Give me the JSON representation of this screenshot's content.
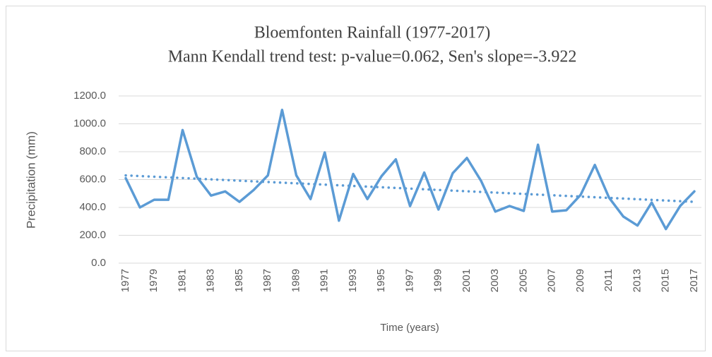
{
  "chart_data": {
    "type": "line",
    "title": "Bloemfonten Rainfall (1977-2017)",
    "subtitle": "Mann Kendall trend test: p-value=0.062, Sen's slope=-3.922",
    "x_label": "Time (years)",
    "y_label": "Precipitation (mm)",
    "categories": [
      "1977",
      null,
      "1979",
      null,
      "1981",
      null,
      "1983",
      null,
      "1985",
      null,
      "1987",
      null,
      "1989",
      null,
      "1991",
      null,
      "1993",
      null,
      "1995",
      null,
      "1997",
      null,
      "1999",
      null,
      "2001",
      null,
      "2003",
      null,
      "2005",
      null,
      "2007",
      null,
      "2009",
      null,
      "2011",
      null,
      "2013",
      null,
      "2015",
      null,
      "2017"
    ],
    "series": [
      {
        "color": "#5b9bd5",
        "values": [
          610,
          400,
          455,
          455,
          955,
          620,
          485,
          515,
          440,
          525,
          630,
          1100,
          630,
          460,
          795,
          305,
          640,
          460,
          625,
          745,
          410,
          650,
          385,
          645,
          755,
          590,
          370,
          410,
          375,
          850,
          370,
          380,
          490,
          705,
          470,
          335,
          270,
          435,
          245,
          410,
          515
        ]
      }
    ],
    "trendline": {
      "color": "#5b9bd5",
      "values": [
        630,
        440
      ]
    },
    "ylim": [
      0,
      1200
    ],
    "yticks": [
      {
        "value": 0,
        "label": "0.0"
      },
      {
        "value": 200,
        "label": "200.0"
      },
      {
        "value": 400,
        "label": "400.0"
      },
      {
        "value": 600,
        "label": "600.0"
      },
      {
        "value": 800,
        "label": "800.0"
      },
      {
        "value": 1000,
        "label": "1000.0"
      },
      {
        "value": 1200,
        "label": "1200.0"
      }
    ],
    "grid": true
  }
}
